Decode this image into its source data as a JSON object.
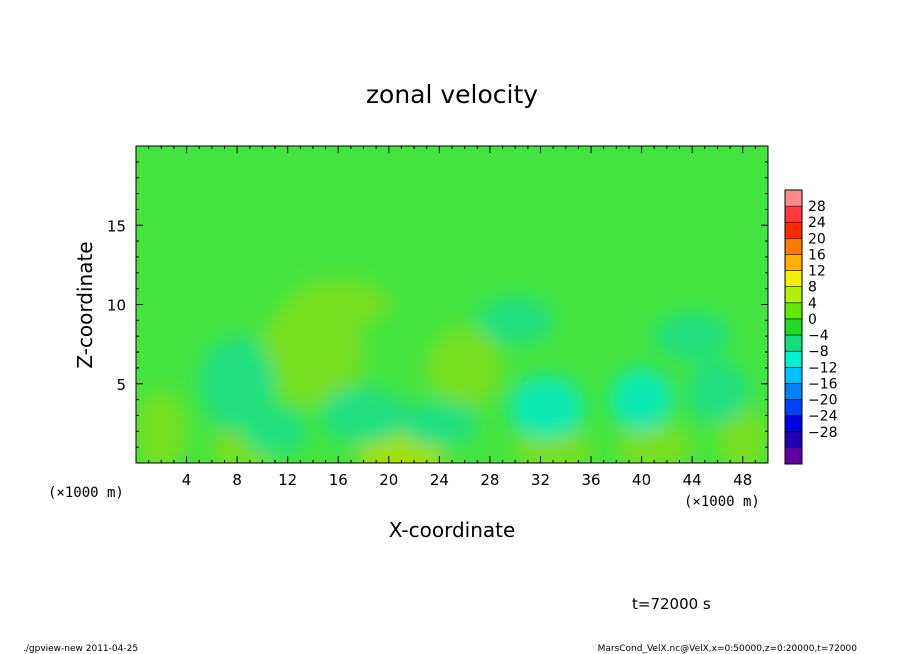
{
  "chart_data": {
    "type": "heatmap",
    "title": "zonal velocity",
    "xlabel": "X-coordinate",
    "ylabel": "Z-coordinate",
    "x_unit_left": "(×1000 m)",
    "x_unit_right": "(×1000 m)",
    "xlim": [
      0,
      50
    ],
    "ylim": [
      0,
      20
    ],
    "xticks": [
      4,
      8,
      12,
      16,
      20,
      24,
      28,
      32,
      36,
      40,
      44,
      48
    ],
    "yticks": [
      5,
      10,
      15
    ],
    "colorbar": {
      "levels": [
        28,
        24,
        20,
        16,
        12,
        8,
        4,
        0,
        -4,
        -8,
        -12,
        -16,
        -20,
        -24,
        -28
      ],
      "colors": [
        "#ff8a8a",
        "#ff3a3a",
        "#ff2a00",
        "#ff7a00",
        "#ffb000",
        "#f0f000",
        "#b0f000",
        "#60e800",
        "#20dc20",
        "#10e080",
        "#00f0d0",
        "#00c0ff",
        "#0080ff",
        "#0040ff",
        "#0000e0",
        "#2000b0",
        "#6000a0"
      ]
    },
    "field_colors": {
      "background": "#44e440",
      "positive_blob": "#78e020",
      "strong_positive": "#a0e000",
      "negative_blob": "#20e080",
      "strong_negative": "#10e8b0"
    }
  },
  "time_label": "t=72000 s",
  "footer_left": "./gpview-new  2011-04-25",
  "footer_right": "MarsCond_VelX.nc@VelX,x=0:50000,z=0:20000,t=72000"
}
